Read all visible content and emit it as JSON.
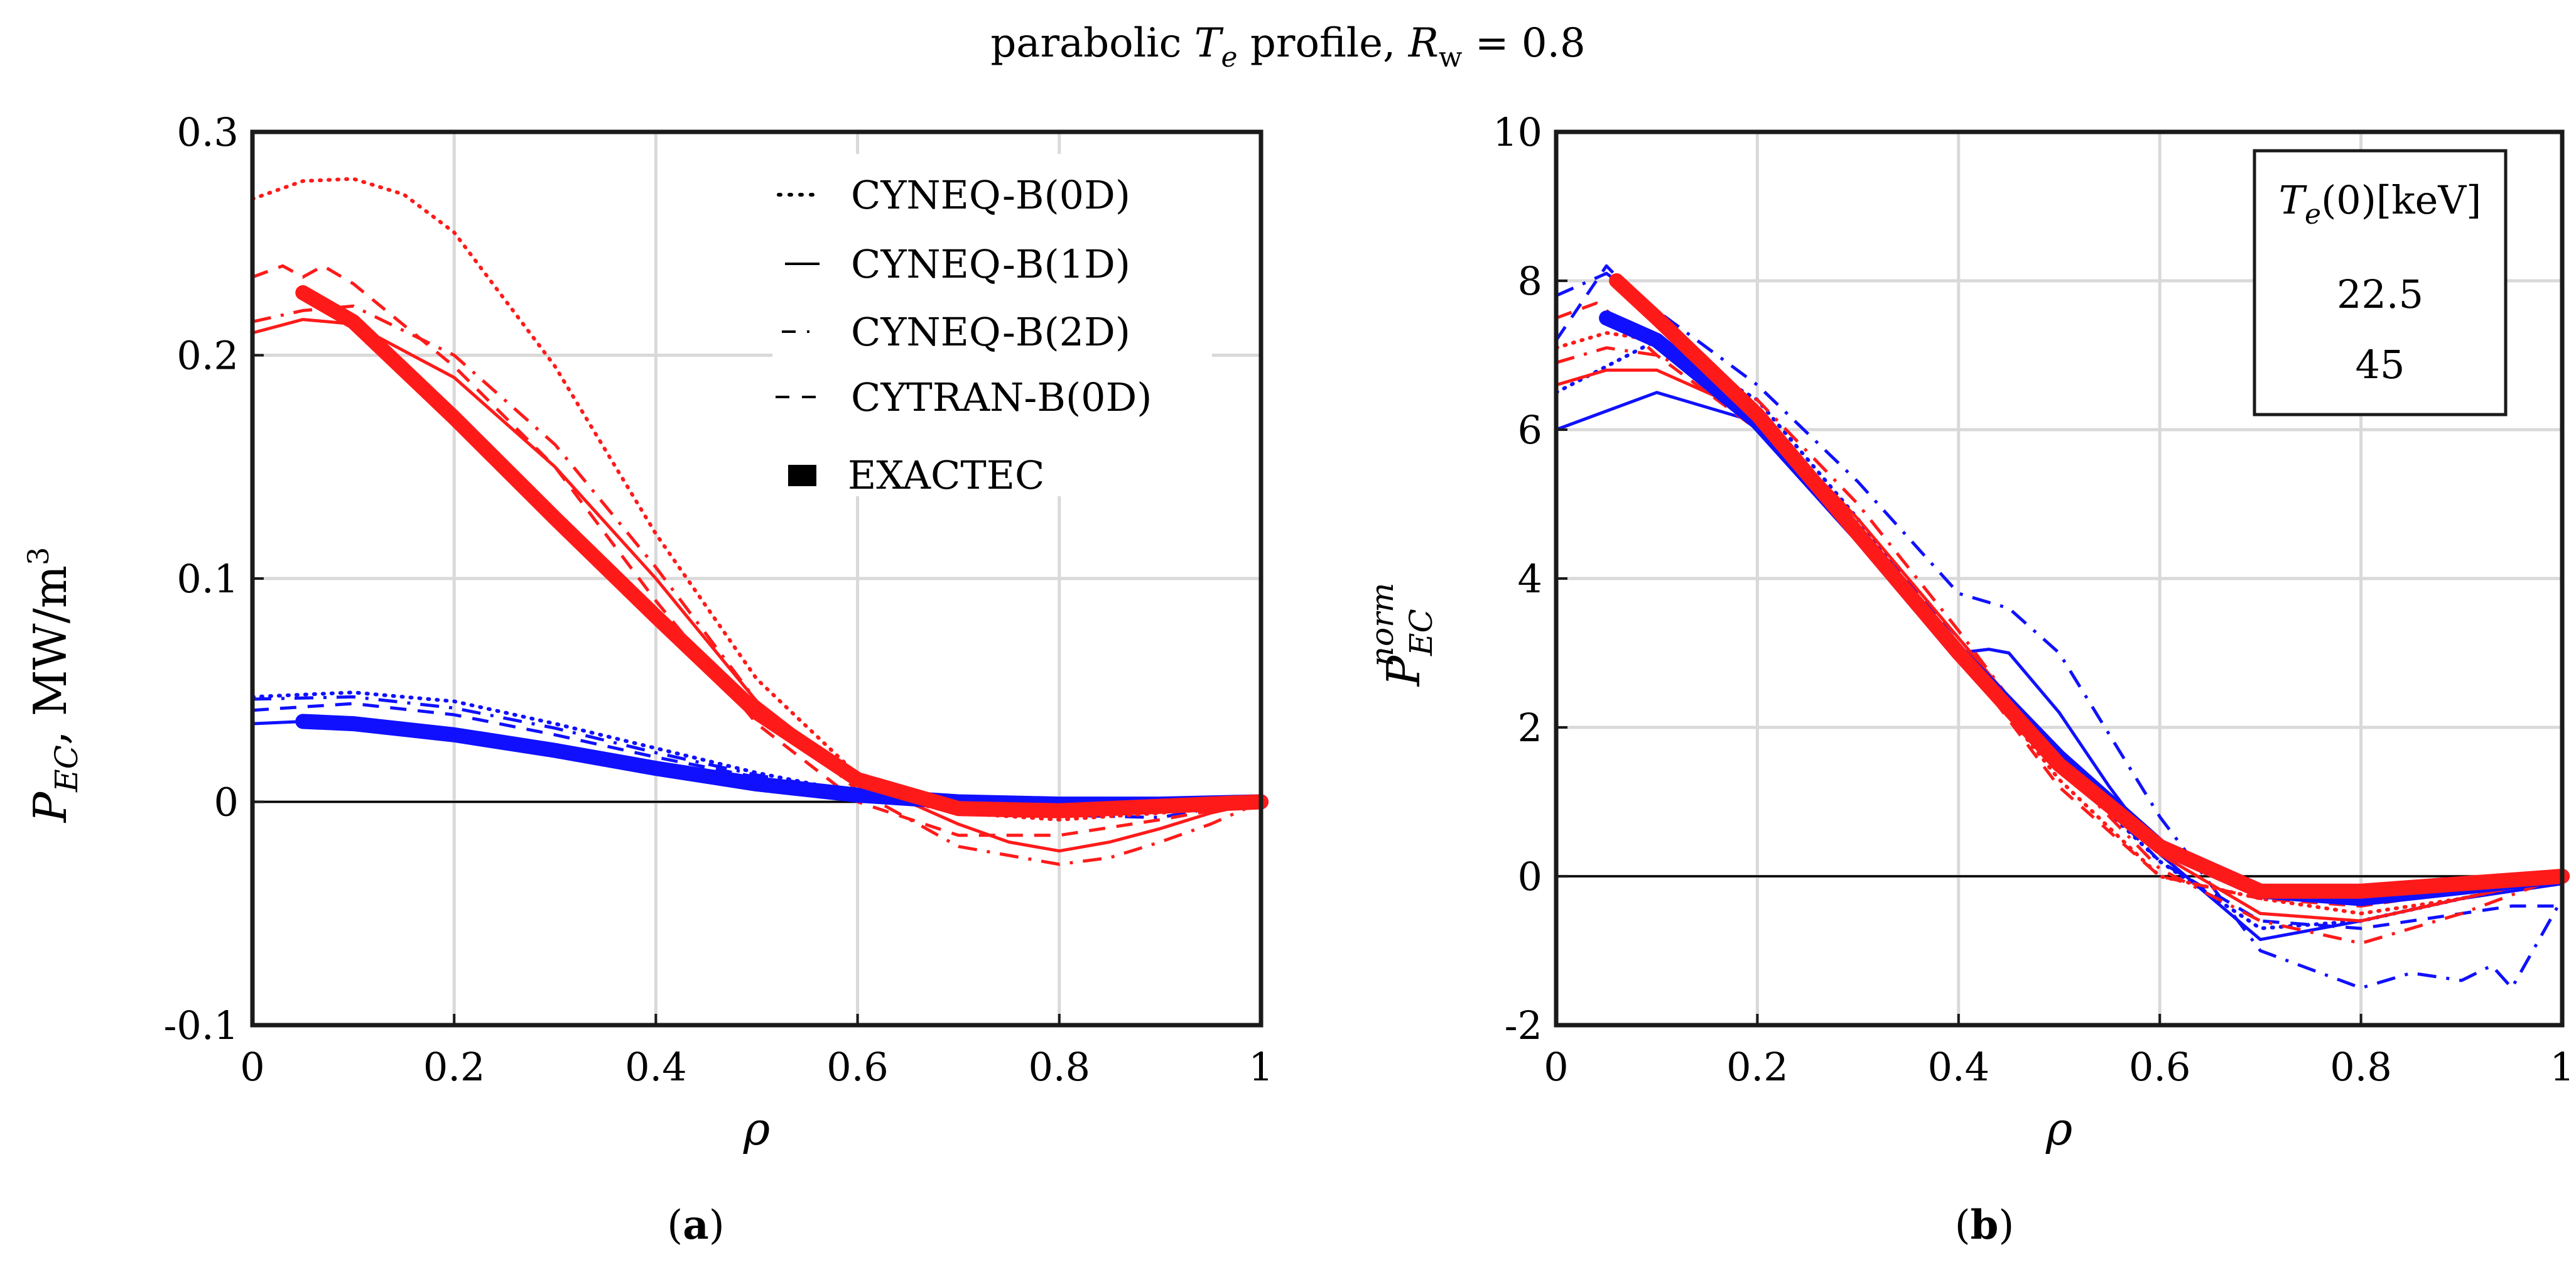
{
  "figure_title": {
    "pre": "parabolic ",
    "te": "T",
    "te_sub": "e",
    "mid": " profile, ",
    "rw": "R",
    "rw_sub": "w",
    "post": " = 0.8"
  },
  "colors": {
    "case_22_5": "#1010ff",
    "case_45": "#ff1a1a"
  },
  "legend_a": {
    "items": [
      "CYNEQ-B(0D)",
      "CYNEQ-B(1D)",
      "CYNEQ-B(2D)",
      "CYTRAN-B(0D)",
      "EXACTEC"
    ]
  },
  "legend_b": {
    "title_T": "T",
    "title_sub": "e",
    "title_rest": "(0)[keV]",
    "values": [
      "22.5",
      "45"
    ]
  },
  "chart_data": [
    {
      "panel": "(a)",
      "panel_letter": "a",
      "type": "line",
      "xlabel": "ρ",
      "ylabel": {
        "P": "P",
        "sub": "EC",
        "rest": ", MW/m",
        "sup": "3"
      },
      "xlim": [
        0,
        1
      ],
      "ylim": [
        -0.1,
        0.3
      ],
      "xticks": [
        0,
        0.2,
        0.4,
        0.6,
        0.8,
        1
      ],
      "xtick_labels": [
        "0",
        "0.2",
        "0.4",
        "0.6",
        "0.8",
        "1"
      ],
      "yticks": [
        -0.1,
        0,
        0.1,
        0.2,
        0.3
      ],
      "ytick_labels": [
        "-0.1",
        "0",
        "0.1",
        "0.2",
        "0.3"
      ],
      "series": [
        {
          "name": "CYNEQ-B(0D)",
          "Te0": "22.5",
          "style": "dot",
          "x": [
            0,
            0.1,
            0.2,
            0.3,
            0.4,
            0.5,
            0.6,
            0.7,
            0.8,
            0.9,
            1.0
          ],
          "y": [
            0.047,
            0.049,
            0.045,
            0.035,
            0.024,
            0.013,
            0.004,
            -0.001,
            -0.003,
            -0.002,
            0
          ]
        },
        {
          "name": "CYNEQ-B(1D)",
          "Te0": "22.5",
          "style": "solid",
          "x": [
            0,
            0.1,
            0.2,
            0.3,
            0.4,
            0.5,
            0.6,
            0.7,
            0.8,
            0.9,
            1.0
          ],
          "y": [
            0.035,
            0.037,
            0.032,
            0.024,
            0.016,
            0.009,
            0.003,
            0.0,
            -0.001,
            -0.001,
            0
          ]
        },
        {
          "name": "CYNEQ-B(2D)",
          "Te0": "22.5",
          "style": "dashdot",
          "x": [
            0,
            0.1,
            0.2,
            0.3,
            0.4,
            0.5,
            0.6,
            0.7,
            0.8,
            0.9,
            0.95,
            1.0
          ],
          "y": [
            0.046,
            0.047,
            0.042,
            0.033,
            0.022,
            0.012,
            0.004,
            -0.003,
            -0.006,
            -0.007,
            -0.003,
            0
          ]
        },
        {
          "name": "CYTRAN-B(0D)",
          "Te0": "22.5",
          "style": "dash",
          "x": [
            0,
            0.1,
            0.2,
            0.3,
            0.4,
            0.5,
            0.6,
            0.7,
            0.8,
            0.9,
            1.0
          ],
          "y": [
            0.041,
            0.044,
            0.039,
            0.03,
            0.02,
            0.011,
            0.003,
            -0.002,
            -0.004,
            -0.003,
            0
          ]
        },
        {
          "name": "EXACTEC",
          "Te0": "22.5",
          "style": "thick",
          "x": [
            0.05,
            0.1,
            0.2,
            0.3,
            0.4,
            0.5,
            0.6,
            0.7,
            0.8,
            0.9,
            1.0
          ],
          "y": [
            0.036,
            0.035,
            0.03,
            0.023,
            0.015,
            0.008,
            0.003,
            0.0,
            -0.001,
            -0.001,
            0
          ]
        },
        {
          "name": "CYNEQ-B(0D)",
          "Te0": "45",
          "style": "dot",
          "x": [
            0,
            0.05,
            0.1,
            0.15,
            0.2,
            0.3,
            0.4,
            0.5,
            0.6,
            0.65,
            0.7,
            0.8,
            0.9,
            1.0
          ],
          "y": [
            0.27,
            0.278,
            0.279,
            0.272,
            0.255,
            0.195,
            0.12,
            0.055,
            0.012,
            0.0,
            -0.005,
            -0.008,
            -0.005,
            0
          ]
        },
        {
          "name": "CYNEQ-B(1D)",
          "Te0": "45",
          "style": "solid",
          "x": [
            0,
            0.05,
            0.1,
            0.2,
            0.3,
            0.4,
            0.5,
            0.6,
            0.7,
            0.75,
            0.8,
            0.85,
            0.9,
            0.95,
            1.0
          ],
          "y": [
            0.21,
            0.216,
            0.214,
            0.19,
            0.15,
            0.1,
            0.045,
            0.01,
            -0.01,
            -0.018,
            -0.022,
            -0.018,
            -0.012,
            -0.005,
            0
          ]
        },
        {
          "name": "CYNEQ-B(2D)",
          "Te0": "45",
          "style": "dashdot",
          "x": [
            0,
            0.05,
            0.1,
            0.2,
            0.3,
            0.4,
            0.5,
            0.6,
            0.7,
            0.8,
            0.85,
            0.9,
            0.95,
            1.0
          ],
          "y": [
            0.215,
            0.22,
            0.222,
            0.2,
            0.16,
            0.105,
            0.045,
            0.005,
            -0.02,
            -0.028,
            -0.025,
            -0.018,
            -0.01,
            0
          ]
        },
        {
          "name": "CYTRAN-B(0D)",
          "Te0": "45",
          "style": "dash",
          "x": [
            0,
            0.03,
            0.05,
            0.07,
            0.1,
            0.2,
            0.3,
            0.4,
            0.5,
            0.6,
            0.7,
            0.8,
            0.9,
            1.0
          ],
          "y": [
            0.235,
            0.24,
            0.235,
            0.24,
            0.232,
            0.195,
            0.15,
            0.09,
            0.035,
            0.0,
            -0.015,
            -0.015,
            -0.008,
            0
          ]
        },
        {
          "name": "EXACTEC",
          "Te0": "45",
          "style": "thick",
          "x": [
            0.05,
            0.1,
            0.2,
            0.3,
            0.4,
            0.5,
            0.6,
            0.7,
            0.8,
            0.9,
            1.0
          ],
          "y": [
            0.228,
            0.215,
            0.172,
            0.127,
            0.083,
            0.04,
            0.01,
            -0.003,
            -0.004,
            -0.002,
            0
          ]
        }
      ]
    },
    {
      "panel": "(b)",
      "panel_letter": "b",
      "type": "line",
      "xlabel": "ρ",
      "ylabel": {
        "P": "P",
        "sub": "EC",
        "sup": "norm"
      },
      "xlim": [
        0,
        1
      ],
      "ylim": [
        -2,
        10
      ],
      "xticks": [
        0,
        0.2,
        0.4,
        0.6,
        0.8,
        1
      ],
      "xtick_labels": [
        "0",
        "0.2",
        "0.4",
        "0.6",
        "0.8",
        "1"
      ],
      "yticks": [
        -2,
        0,
        2,
        4,
        6,
        8,
        10
      ],
      "ytick_labels": [
        "-2",
        "0",
        "2",
        "4",
        "6",
        "8",
        "10"
      ],
      "series": [
        {
          "name": "CYNEQ-B(0D)",
          "Te0": "22.5",
          "style": "dot",
          "x": [
            0,
            0.1,
            0.2,
            0.3,
            0.4,
            0.5,
            0.6,
            0.7,
            0.8,
            0.9,
            1.0
          ],
          "y": [
            6.5,
            7.2,
            6.4,
            4.8,
            3.0,
            1.5,
            0.2,
            -0.7,
            -0.6,
            -0.3,
            0
          ]
        },
        {
          "name": "CYNEQ-B(1D)",
          "Te0": "22.5",
          "style": "solid",
          "x": [
            0,
            0.1,
            0.2,
            0.3,
            0.4,
            0.43,
            0.45,
            0.5,
            0.55,
            0.6,
            0.7,
            0.8,
            0.9,
            1.0
          ],
          "y": [
            6.0,
            6.5,
            6.1,
            4.6,
            3.0,
            3.05,
            3.0,
            2.2,
            1.2,
            0.3,
            -0.85,
            -0.6,
            -0.3,
            -0.1
          ]
        },
        {
          "name": "CYNEQ-B(2D)",
          "Te0": "22.5",
          "style": "dashdot",
          "x": [
            0,
            0.05,
            0.1,
            0.2,
            0.3,
            0.4,
            0.45,
            0.5,
            0.55,
            0.6,
            0.7,
            0.8,
            0.85,
            0.9,
            0.93,
            0.95,
            1.0
          ],
          "y": [
            7.8,
            8.1,
            7.6,
            6.6,
            5.3,
            3.8,
            3.6,
            3.0,
            1.9,
            0.8,
            -1.0,
            -1.5,
            -1.3,
            -1.4,
            -1.2,
            -1.5,
            -0.3
          ]
        },
        {
          "name": "CYTRAN-B(0D)",
          "Te0": "22.5",
          "style": "dash",
          "x": [
            0,
            0.05,
            0.1,
            0.2,
            0.3,
            0.4,
            0.5,
            0.6,
            0.7,
            0.8,
            0.9,
            0.95,
            1.0
          ],
          "y": [
            7.2,
            8.2,
            7.5,
            6.1,
            4.7,
            3.2,
            1.6,
            0.2,
            -0.6,
            -0.7,
            -0.5,
            -0.4,
            -0.4
          ]
        },
        {
          "name": "EXACTEC",
          "Te0": "22.5",
          "style": "thick",
          "x": [
            0.05,
            0.1,
            0.2,
            0.3,
            0.4,
            0.5,
            0.6,
            0.7,
            0.8,
            0.9,
            1.0
          ],
          "y": [
            7.5,
            7.2,
            6.1,
            4.6,
            3.0,
            1.6,
            0.4,
            -0.2,
            -0.3,
            -0.15,
            0
          ]
        },
        {
          "name": "CYNEQ-B(0D)",
          "Te0": "45",
          "style": "dot",
          "x": [
            0,
            0.05,
            0.1,
            0.2,
            0.3,
            0.4,
            0.5,
            0.6,
            0.7,
            0.8,
            0.9,
            1.0
          ],
          "y": [
            7.1,
            7.3,
            7.2,
            6.2,
            4.7,
            3.0,
            1.3,
            0.0,
            -0.3,
            -0.5,
            -0.3,
            0
          ]
        },
        {
          "name": "CYNEQ-B(1D)",
          "Te0": "45",
          "style": "solid",
          "x": [
            0,
            0.05,
            0.1,
            0.2,
            0.3,
            0.4,
            0.5,
            0.6,
            0.7,
            0.8,
            0.9,
            1.0
          ],
          "y": [
            6.6,
            6.8,
            6.8,
            6.2,
            4.8,
            3.2,
            1.6,
            0.3,
            -0.5,
            -0.6,
            -0.3,
            0
          ]
        },
        {
          "name": "CYNEQ-B(2D)",
          "Te0": "45",
          "style": "dashdot",
          "x": [
            0,
            0.05,
            0.1,
            0.2,
            0.3,
            0.4,
            0.5,
            0.6,
            0.7,
            0.8,
            0.9,
            1.0
          ],
          "y": [
            6.9,
            7.1,
            7.0,
            6.4,
            5.0,
            3.3,
            1.5,
            0.1,
            -0.6,
            -0.9,
            -0.5,
            0
          ]
        },
        {
          "name": "CYTRAN-B(0D)",
          "Te0": "45",
          "style": "dash",
          "x": [
            0,
            0.02,
            0.04,
            0.06,
            0.1,
            0.2,
            0.3,
            0.4,
            0.5,
            0.6,
            0.7,
            0.8,
            0.9,
            1.0
          ],
          "y": [
            7.5,
            7.6,
            7.7,
            7.5,
            7.0,
            6.0,
            4.6,
            3.0,
            1.2,
            0.0,
            -0.3,
            -0.4,
            -0.2,
            0
          ]
        },
        {
          "name": "EXACTEC",
          "Te0": "45",
          "style": "thick",
          "x": [
            0.06,
            0.1,
            0.2,
            0.3,
            0.4,
            0.5,
            0.6,
            0.7,
            0.8,
            0.9,
            1.0
          ],
          "y": [
            8.0,
            7.5,
            6.2,
            4.6,
            3.0,
            1.5,
            0.4,
            -0.2,
            -0.2,
            -0.1,
            0
          ]
        }
      ]
    }
  ]
}
